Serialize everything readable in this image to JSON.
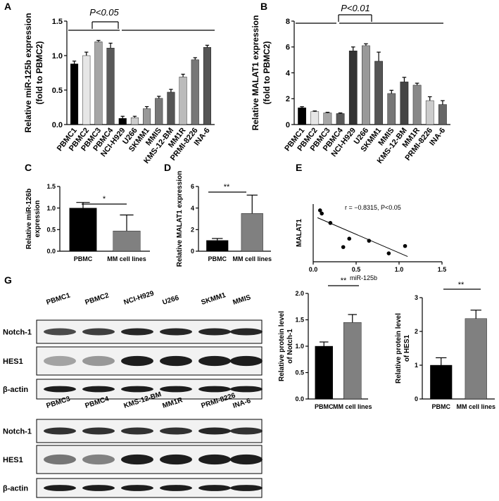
{
  "panel_labels": [
    "A",
    "B",
    "C",
    "D",
    "E",
    "G"
  ],
  "chart_data": [
    {
      "type": "bar",
      "ylabel": [
        "Relative miR-125b expression",
        "(fold to PBMC2)"
      ],
      "annotation": "P<0.05",
      "categories": [
        "PBMC1",
        "PBMC2",
        "PBMC3",
        "PBMC4",
        "NCI-H929",
        "U266",
        "SKMM1",
        "MMIS",
        "KMS-12-BM",
        "MM1R",
        "PRMI-8226",
        "INA-6"
      ],
      "values": [
        0.88,
        1.0,
        1.2,
        1.11,
        0.09,
        0.1,
        0.23,
        0.38,
        0.47,
        0.69,
        0.94,
        1.12
      ],
      "errors": [
        0.04,
        0.05,
        0.02,
        0.07,
        0.03,
        0.02,
        0.03,
        0.03,
        0.04,
        0.04,
        0.03,
        0.03
      ],
      "colors": [
        "#000000",
        "#e6e6e6",
        "#a6a6a6",
        "#595959",
        "#000000",
        "#cccccc",
        "#999999",
        "#777777",
        "#555555",
        "#bbbbbb",
        "#777777",
        "#555555"
      ],
      "ylim": [
        0,
        1.5
      ],
      "yticks": [
        {
          "value": 0,
          "label": "0.0"
        },
        0.5,
        {
          "value": 1,
          "label": "1.0"
        },
        1.5
      ]
    },
    {
      "type": "bar",
      "ylabel": [
        "Relative MALAT1 expression",
        "(fold to PBMC2)"
      ],
      "annotation": "P<0.01",
      "categories": [
        "PBMC1",
        "PBMC2",
        "PBMC3",
        "PBMC4",
        "NCI-H929",
        "U266",
        "SKMM1",
        "MMIS",
        "KMS-12-BM",
        "MM1R",
        "PRMI-8226",
        "INA-6"
      ],
      "values": [
        1.3,
        1.0,
        0.9,
        0.85,
        5.7,
        6.1,
        4.9,
        2.4,
        3.3,
        3.05,
        1.85,
        1.55
      ],
      "errors": [
        0.08,
        0.05,
        0.05,
        0.05,
        0.3,
        0.15,
        0.7,
        0.25,
        0.35,
        0.15,
        0.3,
        0.3
      ],
      "colors": [
        "#000000",
        "#e6e6e6",
        "#a6a6a6",
        "#595959",
        "#333333",
        "#999999",
        "#555555",
        "#777777",
        "#444444",
        "#888888",
        "#cccccc",
        "#666666"
      ],
      "ylim": [
        0,
        8
      ],
      "yticks": [
        0,
        2,
        4,
        6,
        8
      ]
    },
    {
      "type": "bar",
      "ylabel": [
        "Relative miR-126b",
        "expression"
      ],
      "annotation": "*",
      "categories": [
        "PBMC",
        "MM cell lines"
      ],
      "values": [
        1.0,
        0.47
      ],
      "errors": [
        0.13,
        0.37
      ],
      "colors": [
        "#000000",
        "#808080"
      ],
      "ylim": [
        0,
        1.5
      ],
      "yticks": [
        {
          "value": 0,
          "label": "0.0"
        },
        0.5,
        {
          "value": 1,
          "label": "1.0"
        },
        1.5
      ]
    },
    {
      "type": "bar",
      "ylabel": [
        "Relative MALAT1 expression"
      ],
      "annotation": "**",
      "categories": [
        "PBMC",
        "MM cell lines"
      ],
      "values": [
        1.0,
        3.5
      ],
      "errors": [
        0.18,
        1.7
      ],
      "colors": [
        "#000000",
        "#808080"
      ],
      "ylim": [
        0,
        6
      ],
      "yticks": [
        0,
        2,
        4,
        6
      ]
    },
    {
      "type": "scatter",
      "ylabel": [
        "MALAT1"
      ],
      "xlabel": "miR-125b",
      "annotation": "r = −0.8315, P<0.05",
      "x": [
        0.08,
        0.1,
        0.2,
        0.35,
        0.42,
        0.65,
        0.88,
        1.07
      ],
      "y": [
        5.9,
        5.6,
        4.7,
        2.4,
        3.2,
        3.0,
        1.8,
        2.5
      ],
      "trendline": {
        "x": [
          0.05,
          1.1
        ],
        "y": [
          5.2,
          1.5
        ]
      },
      "xlim": [
        0,
        1.5
      ],
      "xticks": [
        {
          "value": 0,
          "label": "0.0"
        },
        0.5,
        {
          "value": 1,
          "label": "1.0"
        },
        1.5
      ],
      "ylim": [
        1,
        6.5
      ]
    },
    {
      "type": "bar",
      "ylabel": [
        "Relative protein level",
        "of Notch-1"
      ],
      "annotation": "**",
      "categories": [
        "PBMC",
        "MM cell lines"
      ],
      "values": [
        1.0,
        1.45
      ],
      "errors": [
        0.08,
        0.15
      ],
      "colors": [
        "#000000",
        "#808080"
      ],
      "ylim": [
        0,
        2
      ],
      "yticks": [
        {
          "value": 0,
          "label": "0.0"
        },
        0.5,
        {
          "value": 1,
          "label": "1.0"
        },
        1.5,
        {
          "value": 2,
          "label": "2.0"
        }
      ]
    },
    {
      "type": "bar",
      "ylabel": [
        "Relative protein level",
        "of HES1"
      ],
      "annotation": "**",
      "categories": [
        "PBMC",
        "MM cell lines"
      ],
      "values": [
        1.0,
        2.38
      ],
      "errors": [
        0.22,
        0.25
      ],
      "colors": [
        "#000000",
        "#808080"
      ],
      "ylim": [
        0,
        3
      ],
      "yticks": [
        0,
        1,
        2,
        3
      ]
    }
  ],
  "blots": [
    {
      "lanes": [
        "PBMC1",
        "PBMC2",
        "NCI-H929",
        "U266",
        "SKMM1",
        "MMIS"
      ],
      "rows": [
        "Notch-1",
        "HES1",
        "β-actin"
      ]
    },
    {
      "lanes": [
        "PBMC3",
        "PBMC4",
        "KMS-12-BM",
        "MM1R",
        "PRMI-8226",
        "INA-6"
      ],
      "rows": [
        "Notch-1",
        "HES1",
        "β-actin"
      ]
    }
  ]
}
